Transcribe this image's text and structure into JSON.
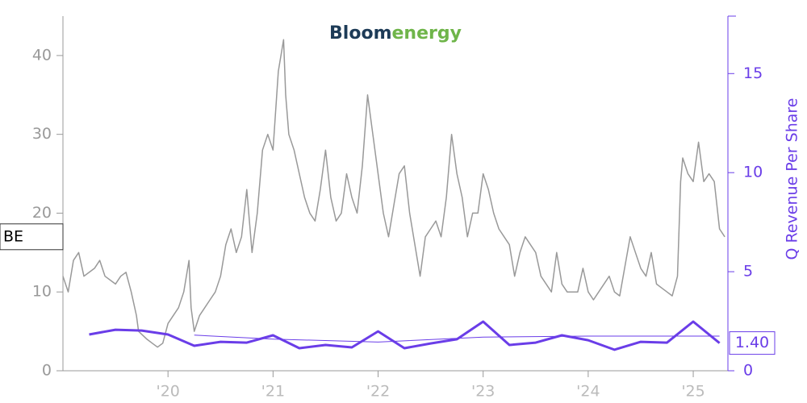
{
  "chart_data": {
    "type": "line",
    "logo": [
      "Bloom",
      "energy"
    ],
    "y2label": "Q Revenue Per Share",
    "xlim": [
      2019.0,
      2025.33
    ],
    "xticks": [
      {
        "value": 2020,
        "label": "'20"
      },
      {
        "value": 2021,
        "label": "'21"
      },
      {
        "value": 2022,
        "label": "'22"
      },
      {
        "value": 2023,
        "label": "'23"
      },
      {
        "value": 2024,
        "label": "'24"
      },
      {
        "value": 2025,
        "label": "'25"
      }
    ],
    "ylim": [
      0,
      45
    ],
    "yticks": [
      0,
      10,
      20,
      30,
      40
    ],
    "y2lim": [
      0,
      17.9
    ],
    "y2ticks": [
      0,
      5,
      10,
      15
    ],
    "series": [
      {
        "name": "BE",
        "color": "#999999",
        "x": [
          2019.0,
          2019.05,
          2019.1,
          2019.15,
          2019.2,
          2019.3,
          2019.35,
          2019.4,
          2019.5,
          2019.55,
          2019.6,
          2019.65,
          2019.7,
          2019.72,
          2019.8,
          2019.85,
          2019.9,
          2019.95,
          2020.0,
          2020.05,
          2020.1,
          2020.15,
          2020.2,
          2020.22,
          2020.25,
          2020.3,
          2020.35,
          2020.4,
          2020.45,
          2020.5,
          2020.55,
          2020.6,
          2020.65,
          2020.7,
          2020.75,
          2020.8,
          2020.85,
          2020.9,
          2020.95,
          2021.0,
          2021.05,
          2021.1,
          2021.12,
          2021.15,
          2021.2,
          2021.25,
          2021.3,
          2021.35,
          2021.4,
          2021.45,
          2021.5,
          2021.55,
          2021.6,
          2021.65,
          2021.7,
          2021.75,
          2021.8,
          2021.85,
          2021.9,
          2021.95,
          2022.0,
          2022.05,
          2022.1,
          2022.15,
          2022.2,
          2022.25,
          2022.3,
          2022.35,
          2022.4,
          2022.45,
          2022.5,
          2022.55,
          2022.6,
          2022.65,
          2022.7,
          2022.75,
          2022.8,
          2022.85,
          2022.9,
          2022.95,
          2023.0,
          2023.05,
          2023.1,
          2023.15,
          2023.2,
          2023.25,
          2023.3,
          2023.35,
          2023.4,
          2023.45,
          2023.5,
          2023.55,
          2023.6,
          2023.65,
          2023.7,
          2023.75,
          2023.8,
          2023.9,
          2023.95,
          2024.0,
          2024.05,
          2024.1,
          2024.15,
          2024.2,
          2024.25,
          2024.3,
          2024.4,
          2024.45,
          2024.5,
          2024.55,
          2024.6,
          2024.65,
          2024.7,
          2024.75,
          2024.8,
          2024.85,
          2024.88,
          2024.9,
          2024.95,
          2025.0,
          2025.05,
          2025.1,
          2025.15,
          2025.2,
          2025.25,
          2025.3
        ],
        "values": [
          12,
          10,
          14,
          15,
          12,
          13,
          14,
          12,
          11,
          12,
          12.5,
          10,
          7,
          5,
          4,
          3.5,
          3,
          3.5,
          6,
          7,
          8,
          10,
          14,
          8,
          5,
          7,
          8,
          9,
          10,
          12,
          16,
          18,
          15,
          17,
          23,
          15,
          20,
          28,
          30,
          28,
          38,
          42,
          35,
          30,
          28,
          25,
          22,
          20,
          19,
          23,
          28,
          22,
          19,
          20,
          25,
          22,
          20,
          26,
          35,
          30,
          25,
          20,
          17,
          21,
          25,
          26,
          20,
          16,
          12,
          17,
          18,
          19,
          17,
          22,
          30,
          25,
          22,
          17,
          20,
          20,
          25,
          23,
          20,
          18,
          17,
          16,
          12,
          15,
          17,
          16,
          15,
          12,
          11,
          10,
          15,
          11,
          10,
          10,
          13,
          10,
          9,
          10,
          11,
          12,
          10,
          9.5,
          17,
          15,
          13,
          12,
          15,
          11,
          10.5,
          10,
          9.5,
          12,
          24,
          27,
          25,
          24,
          29,
          24,
          25,
          24,
          18,
          17
        ]
      },
      {
        "name": null,
        "color": "#6a3de8",
        "axis": "y2",
        "width": 3,
        "x": [
          2019.25,
          2019.5,
          2019.75,
          2020.0,
          2020.25,
          2020.5,
          2020.75,
          2021.0,
          2021.25,
          2021.5,
          2021.75,
          2022.0,
          2022.25,
          2022.5,
          2022.75,
          2023.0,
          2023.25,
          2023.5,
          2023.75,
          2024.0,
          2024.25,
          2024.5,
          2024.75,
          2025.0,
          2025.25
        ],
        "values": [
          1.83,
          2.07,
          2.03,
          1.83,
          1.26,
          1.46,
          1.42,
          1.79,
          1.14,
          1.3,
          1.18,
          1.99,
          1.14,
          1.38,
          1.59,
          2.48,
          1.3,
          1.42,
          1.79,
          1.54,
          1.06,
          1.46,
          1.42,
          2.48,
          1.4
        ],
        "value_labels": [
          null,
          null,
          null,
          null,
          null,
          null,
          null,
          null,
          null,
          null,
          null,
          null,
          null,
          null,
          null,
          null,
          null,
          null,
          null,
          null,
          null,
          null,
          null,
          null,
          "1.40"
        ]
      },
      {
        "name": null,
        "color": "#6a3de8",
        "axis": "y2",
        "width": 1,
        "x": [
          2020.25,
          2021.0,
          2022.0,
          2023.0,
          2024.0,
          2025.25
        ],
        "values": [
          1.8,
          1.6,
          1.45,
          1.7,
          1.75,
          1.75
        ]
      }
    ]
  }
}
